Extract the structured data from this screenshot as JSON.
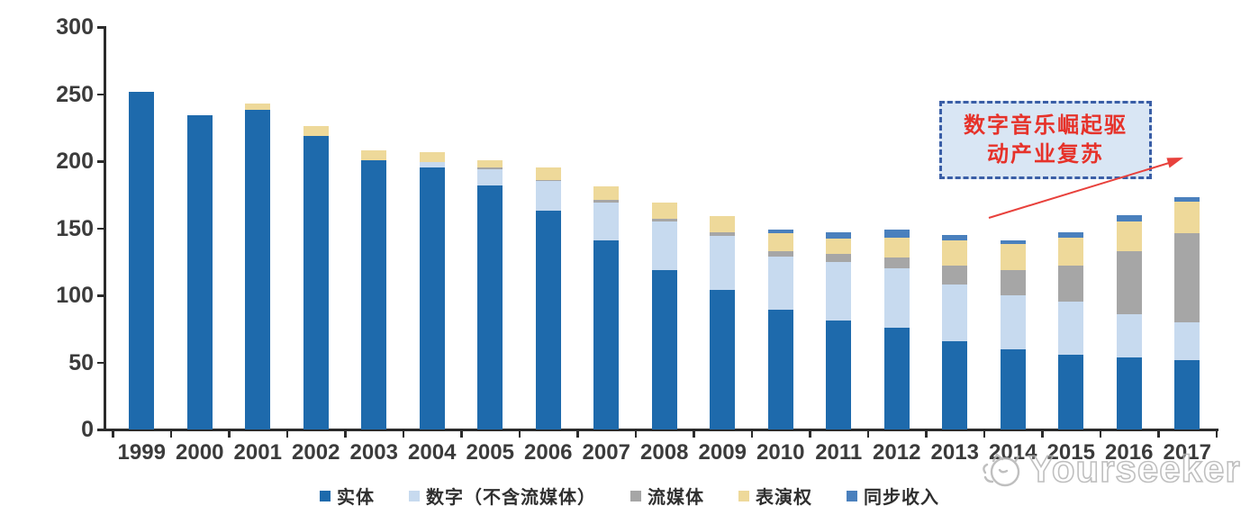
{
  "chart_data": {
    "type": "bar",
    "stacked": true,
    "title": "",
    "xlabel": "",
    "ylabel": "",
    "ylim": [
      0,
      300
    ],
    "yticks": [
      0,
      50,
      100,
      150,
      200,
      250,
      300
    ],
    "grid": false,
    "legend_position": "bottom",
    "categories": [
      "1999",
      "2000",
      "2001",
      "2002",
      "2003",
      "2004",
      "2005",
      "2006",
      "2007",
      "2008",
      "2009",
      "2010",
      "2011",
      "2012",
      "2013",
      "2014",
      "2015",
      "2016",
      "2017"
    ],
    "series": [
      {
        "name": "实体",
        "color": "#1e6aac",
        "values": [
          252,
          234,
          238,
          219,
          201,
          195,
          182,
          163,
          141,
          119,
          104,
          89,
          81,
          76,
          66,
          60,
          56,
          54,
          52
        ]
      },
      {
        "name": "数字（不含流媒体）",
        "color": "#c7daef",
        "values": [
          0,
          0,
          0,
          0,
          0,
          4,
          12,
          22,
          28,
          36,
          40,
          40,
          44,
          44,
          42,
          40,
          39,
          32,
          28
        ]
      },
      {
        "name": "流媒体",
        "color": "#a6a6a6",
        "values": [
          0,
          0,
          0,
          0,
          0,
          0,
          1,
          1,
          2,
          2,
          3,
          4,
          6,
          8,
          14,
          19,
          27,
          47,
          66
        ]
      },
      {
        "name": "表演权",
        "color": "#eed99a",
        "values": [
          0,
          0,
          5,
          7,
          7,
          8,
          6,
          9,
          10,
          12,
          12,
          13,
          11,
          15,
          19,
          19,
          21,
          22,
          24
        ]
      },
      {
        "name": "同步收入",
        "color": "#4a80bd",
        "values": [
          0,
          0,
          0,
          0,
          0,
          0,
          0,
          0,
          0,
          0,
          0,
          3,
          5,
          6,
          4,
          3,
          4,
          5,
          3
        ]
      }
    ]
  },
  "annotation": {
    "line1": "数字音乐崛起驱",
    "line2": "动产业复苏",
    "text_color": "#e6322a",
    "border_color": "#3a5ea6",
    "fill_color": "#d9e6f4",
    "arrow_color": "#e8413c"
  },
  "watermark": {
    "label": "Yourseeker"
  },
  "colors": {
    "axis": "#2b2b2b",
    "tick_text": "#3b3b3b"
  }
}
